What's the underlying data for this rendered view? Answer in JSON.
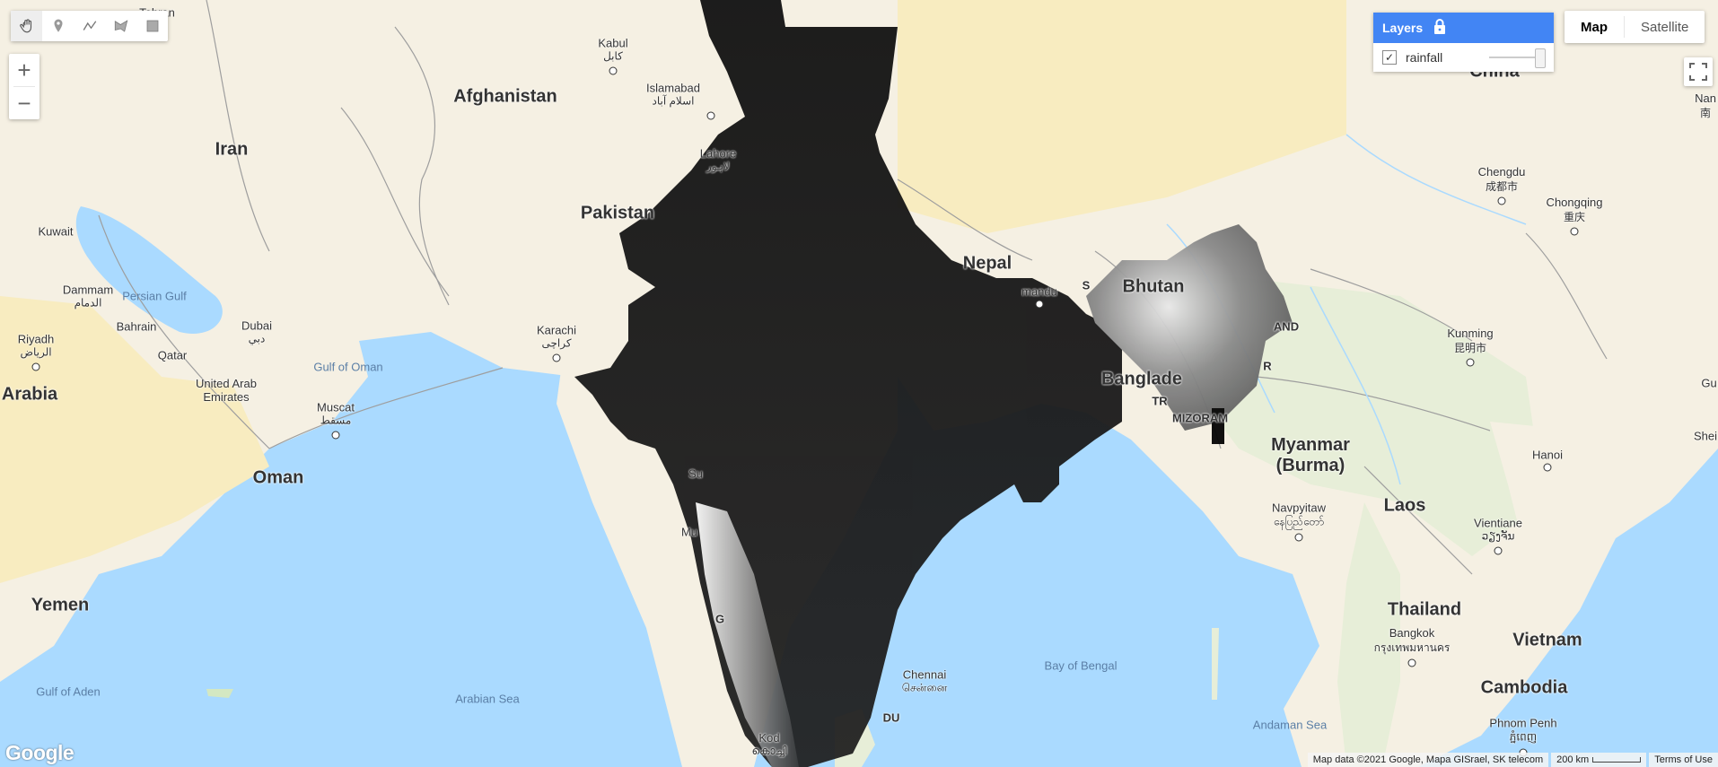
{
  "map_labels": {
    "countries": [
      {
        "key": "afghanistan",
        "text": "Afghanistan"
      },
      {
        "key": "iran",
        "text": "Iran"
      },
      {
        "key": "pakistan",
        "text": "Pakistan"
      },
      {
        "key": "arabia",
        "text": "Arabia"
      },
      {
        "key": "yemen",
        "text": "Yemen"
      },
      {
        "key": "oman",
        "text": "Oman"
      },
      {
        "key": "myanmar",
        "text": "Myanmar\n(Burma)"
      },
      {
        "key": "laos",
        "text": "Laos"
      },
      {
        "key": "thailand",
        "text": "Thailand"
      },
      {
        "key": "vietnam",
        "text": "Vietnam"
      },
      {
        "key": "cambodia",
        "text": "Cambodia"
      },
      {
        "key": "bangladesh",
        "text": "Banglade"
      },
      {
        "key": "nepal",
        "text": "Nepal"
      },
      {
        "key": "bhutan",
        "text": "Bhutan"
      },
      {
        "key": "china",
        "text": "China"
      }
    ],
    "cities": [
      {
        "key": "tehran",
        "text": "Tehran"
      },
      {
        "key": "kabul",
        "text": "Kabul",
        "alt": "کابل"
      },
      {
        "key": "islamabad",
        "text": "Islamabad",
        "alt": "اسلام آباد"
      },
      {
        "key": "lahore",
        "text": "Lahore",
        "alt": "لاہور"
      },
      {
        "key": "karachi",
        "text": "Karachi",
        "alt": "کراچی"
      },
      {
        "key": "kuwait",
        "text": "Kuwait"
      },
      {
        "key": "dammam",
        "text": "Dammam",
        "alt": "الدمام"
      },
      {
        "key": "bahrain",
        "text": "Bahrain"
      },
      {
        "key": "qatar",
        "text": "Qatar"
      },
      {
        "key": "riyadh",
        "text": "Riyadh",
        "alt": "الرياض"
      },
      {
        "key": "dubai",
        "text": "Dubai",
        "alt": "دبي"
      },
      {
        "key": "uae",
        "text": "United Arab\nEmirates"
      },
      {
        "key": "muscat",
        "text": "Muscat",
        "alt": "مسقط"
      },
      {
        "key": "chengdu",
        "text": "Chengdu",
        "alt": "成都市"
      },
      {
        "key": "chongqing",
        "text": "Chongqing",
        "alt": "重庆"
      },
      {
        "key": "kunming",
        "text": "Kunming",
        "alt": "昆明市"
      },
      {
        "key": "hanoi",
        "text": "Hanoi"
      },
      {
        "key": "navpyitaw",
        "text": "Navpyitaw",
        "alt": "နေပြည်တော်"
      },
      {
        "key": "vientiane",
        "text": "Vientiane",
        "alt": "ວຽງຈັນ"
      },
      {
        "key": "bangkok",
        "text": "Bangkok",
        "alt": "กรุงเทพมหานคร"
      },
      {
        "key": "phnompenh",
        "text": "Phnom Penh",
        "alt": "ភ្នំពេញ"
      },
      {
        "key": "chennai",
        "text": "Chennai",
        "alt": "சென்னை"
      },
      {
        "key": "kathmandu",
        "text": "mandu"
      },
      {
        "key": "nanning",
        "text": "Nan",
        "alt": "南"
      },
      {
        "key": "mumbai",
        "text": "Mu"
      },
      {
        "key": "surat",
        "text": "Su"
      },
      {
        "key": "kochi",
        "text": "Kod",
        "alt": "കൊച്ചി"
      },
      {
        "key": "guangzhou",
        "text": "Gu"
      },
      {
        "key": "shenzhen",
        "text": "Shei"
      }
    ],
    "seas": [
      {
        "key": "persian_gulf",
        "text": "Persian Gulf"
      },
      {
        "key": "gulf_of_oman",
        "text": "Gulf of Oman"
      },
      {
        "key": "arabian_sea",
        "text": "Arabian Sea"
      },
      {
        "key": "bay_of_bengal",
        "text": "Bay of Bengal"
      },
      {
        "key": "gulf_of_aden",
        "text": "Gulf of Aden"
      },
      {
        "key": "andaman_sea",
        "text": "Andaman Sea"
      }
    ],
    "regions": [
      {
        "key": "mizoram",
        "text": "MIZORAM"
      },
      {
        "key": "nagaland",
        "text": "AND"
      },
      {
        "key": "manipur",
        "text": "R"
      },
      {
        "key": "tripura",
        "text": "TR"
      },
      {
        "key": "sikkim",
        "text": "S"
      },
      {
        "key": "goa",
        "text": "G"
      },
      {
        "key": "pondicherry",
        "text": "DU"
      }
    ]
  },
  "layers_panel": {
    "title": "Layers",
    "layers": [
      {
        "name": "rainfall",
        "checked": true,
        "opacity": 0.95
      }
    ]
  },
  "map_type": {
    "options": [
      "Map",
      "Satellite"
    ],
    "selected": "Map"
  },
  "zoom": {
    "in_label": "+",
    "out_label": "−"
  },
  "footer": {
    "map_data": "Map data ©2021 Google, Mapa GISrael, SK telecom",
    "scale": "200 km",
    "terms": "Terms of Use"
  },
  "logo": "Google",
  "colors": {
    "water": "#aadaff",
    "land": "#f5f0e3",
    "desert": "#f8ecc0",
    "layers_header": "#4285f4",
    "border": "#9e9e9e"
  },
  "icons": {
    "pan": "hand-icon",
    "marker": "marker-icon",
    "line": "polyline-icon",
    "polygon": "polygon-icon",
    "rectangle": "rectangle-icon",
    "lock": "lock-icon",
    "fullscreen": "fullscreen-icon"
  }
}
